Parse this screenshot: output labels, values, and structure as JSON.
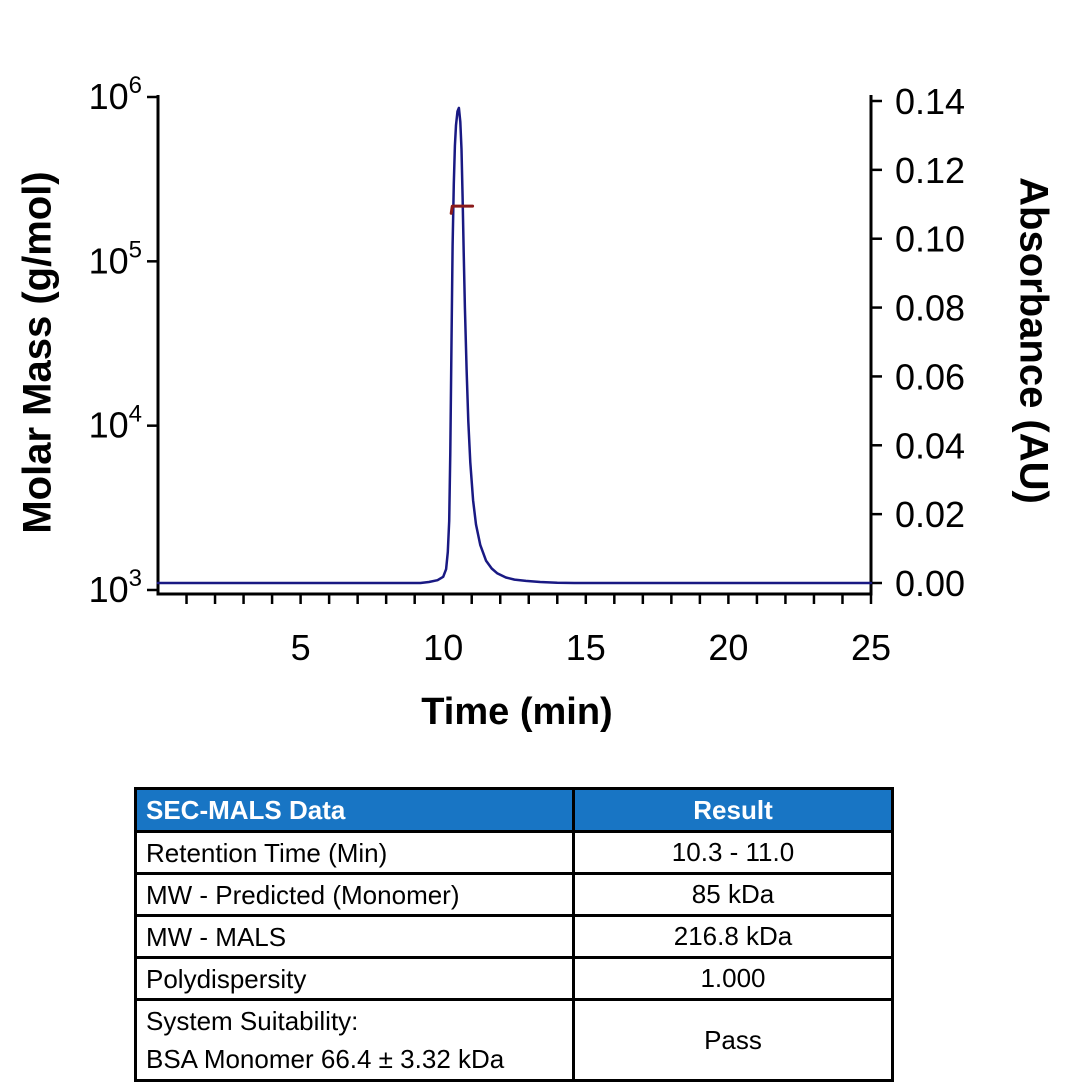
{
  "chart_data": {
    "type": "line",
    "title": "",
    "xlabel": "Time (min)",
    "ylabel_left": "Molar Mass (g/mol)",
    "ylabel_right": "Absorbance (AU)",
    "xlim": [
      0,
      25
    ],
    "x_major_ticks": [
      {
        "label": "5",
        "value": 5
      },
      {
        "label": "10",
        "value": 10
      },
      {
        "label": "15",
        "value": 15
      },
      {
        "label": "20",
        "value": 20
      },
      {
        "label": "25",
        "value": 25
      }
    ],
    "x_minor_tick_step": 1,
    "ylim_right": [
      0.0,
      0.14
    ],
    "y_right_ticks": [
      {
        "label": "0.14",
        "value": 0.14
      },
      {
        "label": "0.12",
        "value": 0.12
      },
      {
        "label": "0.10",
        "value": 0.1
      },
      {
        "label": "0.08",
        "value": 0.08
      },
      {
        "label": "0.06",
        "value": 0.06
      },
      {
        "label": "0.04",
        "value": 0.04
      },
      {
        "label": "0.02",
        "value": 0.02
      },
      {
        "label": "0.00",
        "value": 0.0
      }
    ],
    "ylim_left_log": [
      1000,
      1000000
    ],
    "y_left_ticks": [
      {
        "mantissa": "10",
        "exp": "6",
        "value": 1000000
      },
      {
        "mantissa": "10",
        "exp": "5",
        "value": 100000
      },
      {
        "mantissa": "10",
        "exp": "4",
        "value": 10000
      },
      {
        "mantissa": "10",
        "exp": "3",
        "value": 1000
      }
    ],
    "grid": false,
    "legend": "none",
    "series": [
      {
        "name": "uv-absorbance-trace",
        "axis": "right",
        "color": "#191983",
        "points": [
          [
            0,
            0
          ],
          [
            9.2,
            0
          ],
          [
            9.5,
            0.0003
          ],
          [
            9.8,
            0.0008
          ],
          [
            10.0,
            0.0018
          ],
          [
            10.1,
            0.004
          ],
          [
            10.16,
            0.009
          ],
          [
            10.21,
            0.018
          ],
          [
            10.25,
            0.038
          ],
          [
            10.29,
            0.07
          ],
          [
            10.33,
            0.098
          ],
          [
            10.37,
            0.116
          ],
          [
            10.41,
            0.127
          ],
          [
            10.45,
            0.133
          ],
          [
            10.5,
            0.137
          ],
          [
            10.55,
            0.138
          ],
          [
            10.6,
            0.134
          ],
          [
            10.64,
            0.126
          ],
          [
            10.68,
            0.112
          ],
          [
            10.72,
            0.096
          ],
          [
            10.76,
            0.08
          ],
          [
            10.82,
            0.062
          ],
          [
            10.88,
            0.047
          ],
          [
            10.95,
            0.035
          ],
          [
            11.05,
            0.024
          ],
          [
            11.15,
            0.017
          ],
          [
            11.3,
            0.011
          ],
          [
            11.5,
            0.0065
          ],
          [
            11.7,
            0.0042
          ],
          [
            11.9,
            0.0028
          ],
          [
            12.2,
            0.0016
          ],
          [
            12.5,
            0.001
          ],
          [
            12.9,
            0.0006
          ],
          [
            13.4,
            0.0003
          ],
          [
            14.0,
            0.0001
          ],
          [
            14.6,
            0
          ],
          [
            25,
            0
          ]
        ]
      },
      {
        "name": "mals-molar-mass-trace",
        "axis": "left-log",
        "color": "#8B1A1A",
        "points": [
          [
            10.28,
            196000
          ],
          [
            10.32,
            216800
          ],
          [
            11.03,
            216800
          ]
        ]
      }
    ]
  },
  "table": {
    "header": {
      "col1": "SEC-MALS Data",
      "col2": "Result"
    },
    "header_bg": "#1875C4",
    "rows": [
      {
        "label_lines": [
          "Retention Time (Min)"
        ],
        "value": "10.3 - 11.0"
      },
      {
        "label_lines": [
          "MW - Predicted (Monomer)"
        ],
        "value": "85 kDa"
      },
      {
        "label_lines": [
          "MW - MALS"
        ],
        "value": "216.8 kDa"
      },
      {
        "label_lines": [
          "Polydispersity"
        ],
        "value": "1.000"
      },
      {
        "label_lines": [
          "System Suitability:",
          "BSA Monomer 66.4 ± 3.32 kDa"
        ],
        "value": "Pass"
      }
    ]
  }
}
